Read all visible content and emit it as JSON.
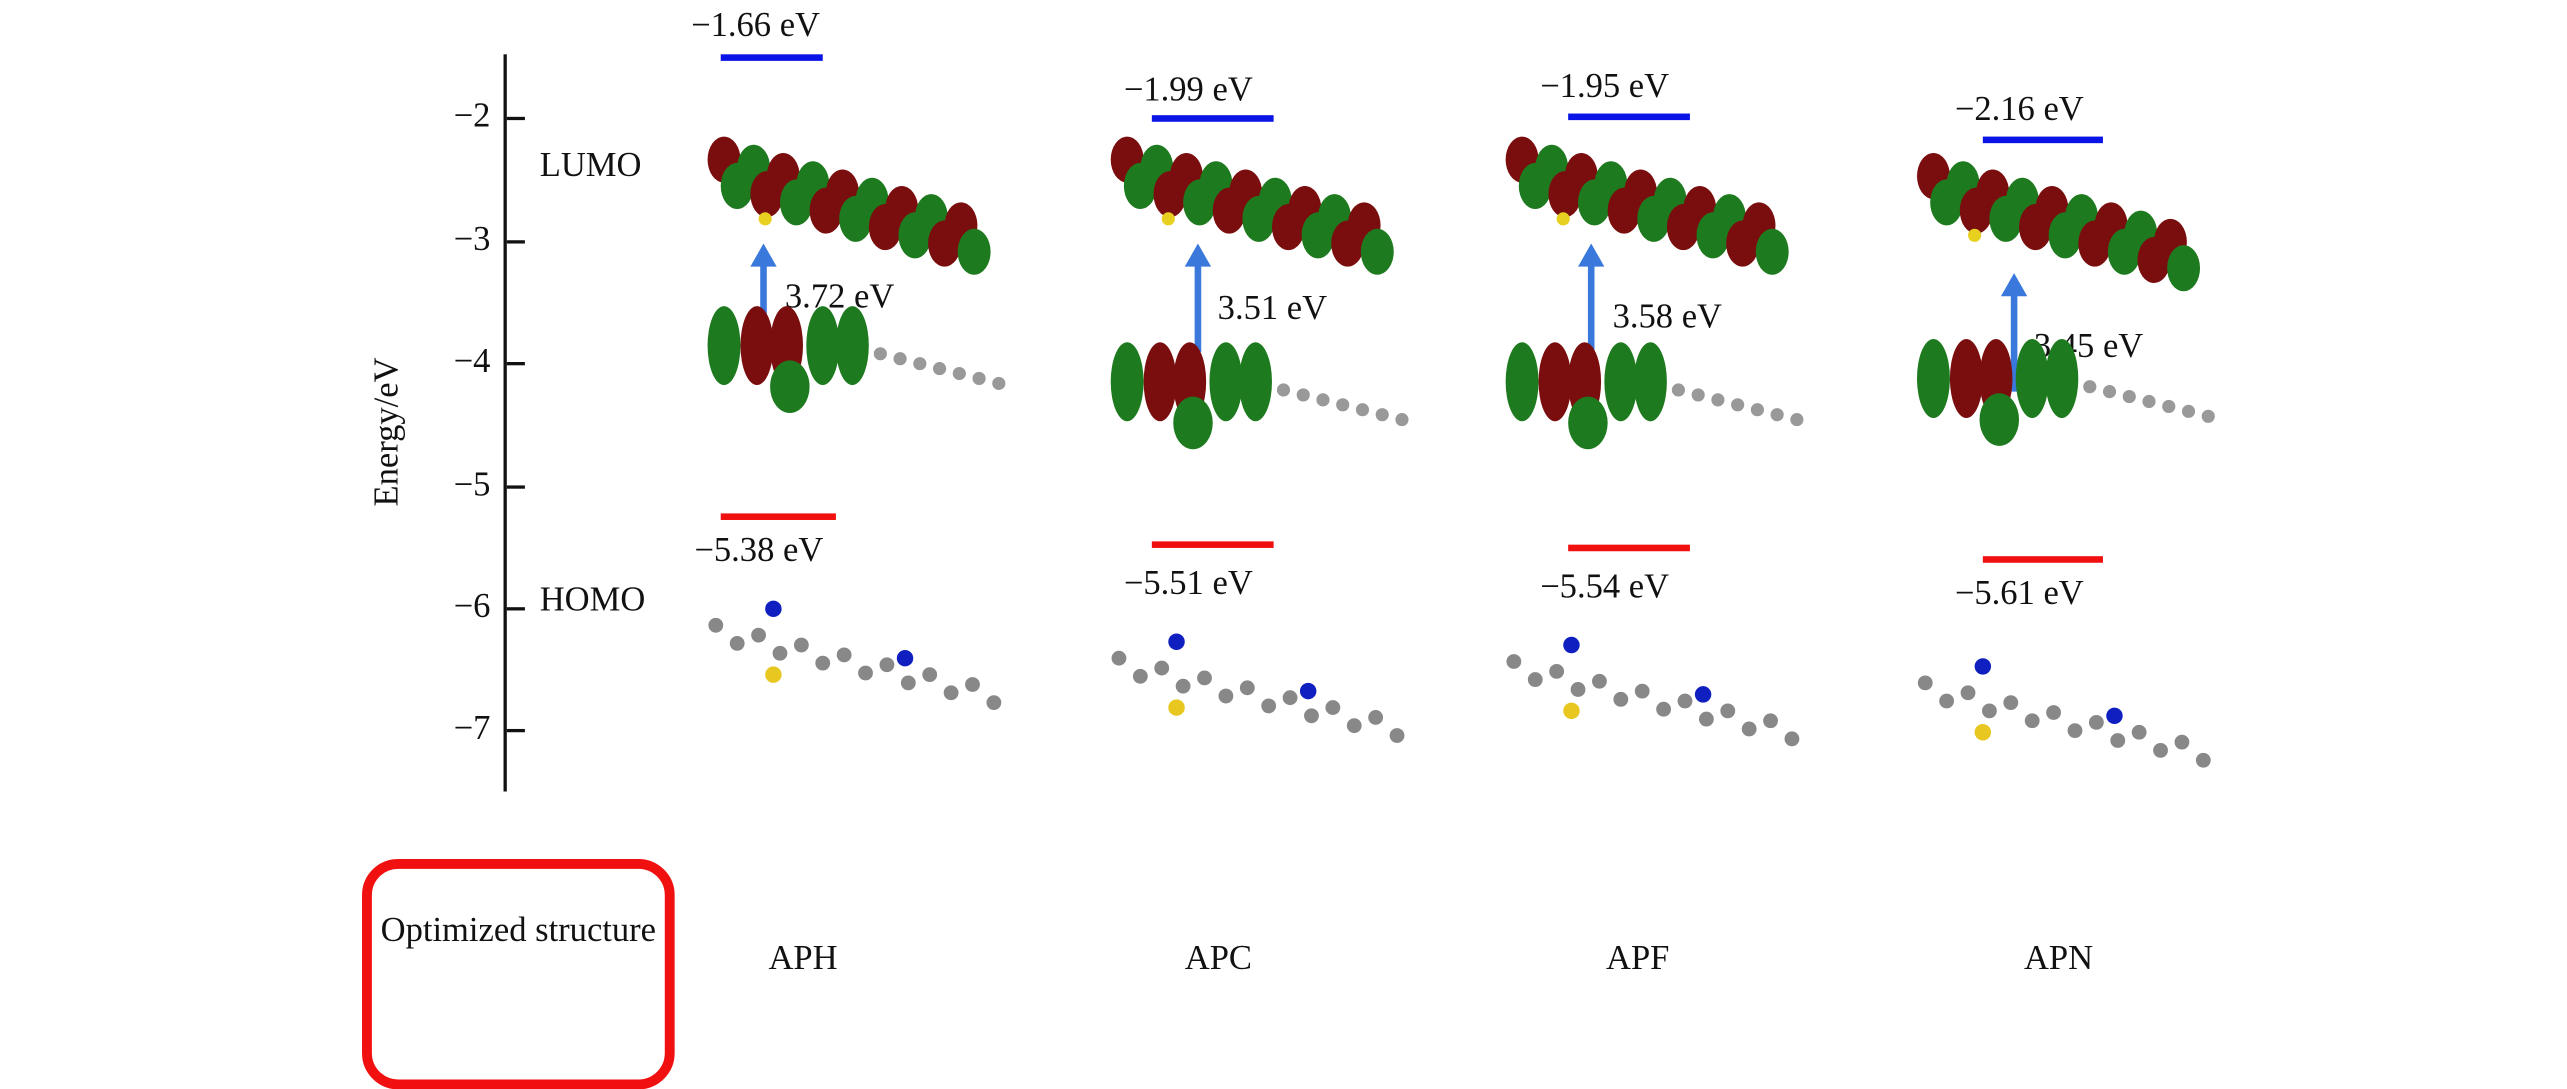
{
  "axis": {
    "label": "Energy/eV",
    "ticks": [
      "−2",
      "−3",
      "−4",
      "−5",
      "−6",
      "−7"
    ]
  },
  "row_labels": {
    "lumo": "LUMO",
    "homo": "HOMO"
  },
  "structure_label": "Optimized structure",
  "colors": {
    "lumo_line": "#0a14e6",
    "homo_line": "#f01010",
    "gap_arrow": "#3a78dc",
    "orbital_positive": "#1e7a1e",
    "orbital_negative": "#7a0e0e",
    "highlight_box": "#f01010"
  },
  "molecules": [
    {
      "name": "APH",
      "lumo": "−1.66 eV",
      "homo": "−5.38 eV",
      "gap": "3.72 eV"
    },
    {
      "name": "APC",
      "lumo": "−1.99 eV",
      "homo": "−5.51 eV",
      "gap": "3.51 eV"
    },
    {
      "name": "APF",
      "lumo": "−1.95 eV",
      "homo": "−5.54 eV",
      "gap": "3.58 eV"
    },
    {
      "name": "APN",
      "lumo": "−2.16 eV",
      "homo": "−5.61 eV",
      "gap": "3.45 eV"
    }
  ]
}
